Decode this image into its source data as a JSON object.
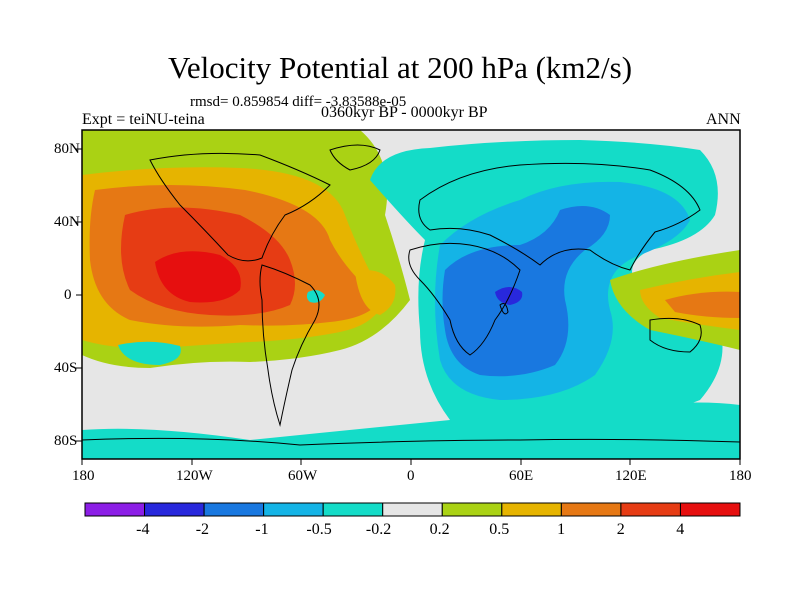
{
  "title": "Velocity Potential at 200 hPa (km2/s)",
  "stats": "rmsd= 0.859854 diff= -3.83588e-05",
  "left_label": "Expt = teiNU-teina",
  "center_label": "0360kyr BP - 0000kyr BP",
  "right_label": "ANN",
  "lat_labels": [
    "80N",
    "40N",
    "0",
    "40S",
    "80S"
  ],
  "lon_labels": [
    "180",
    "120W",
    "60W",
    "0",
    "60E",
    "120E",
    "180"
  ],
  "colorbar": {
    "labels": [
      "-4",
      "-2",
      "-1",
      "-0.5",
      "-0.2",
      "0.2",
      "0.5",
      "1",
      "2",
      "4"
    ],
    "colors": [
      "#8c1ee6",
      "#2828dc",
      "#1978e0",
      "#14b4e6",
      "#14dcc8",
      "#e6e6e6",
      "#aad214",
      "#e6b400",
      "#e67814",
      "#e63c14",
      "#e60f0f"
    ]
  },
  "map_colors": {
    "land_outline": "#000000",
    "neutral": "#e6e6e6"
  }
}
